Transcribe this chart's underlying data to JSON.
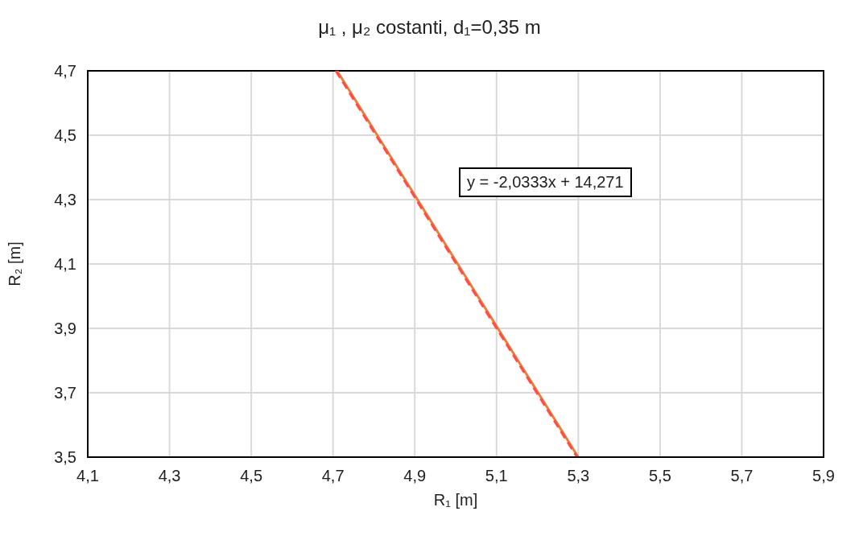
{
  "chart_data": {
    "type": "line",
    "title": "μ₁ , μ₂ costanti, d₁=0,35 m",
    "xlabel": "R₁ [m]",
    "ylabel": "R₂ [m]",
    "annotations": [
      "y = -2,0333x + 14,271"
    ],
    "series": [
      {
        "x": [
          4.71,
          5.3
        ],
        "values": [
          4.7,
          3.5
        ],
        "color": "#ed7d31",
        "line_style": "solid"
      },
      {
        "x": [
          4.707,
          5.297
        ],
        "values": [
          4.7,
          3.5
        ],
        "color": "#ff4b4b",
        "line_style": "dashed"
      }
    ],
    "xlim": [
      4.1,
      5.9
    ],
    "xticks": [
      {
        "value": 4.1,
        "label": "4,1"
      },
      {
        "value": 4.3,
        "label": "4,3"
      },
      {
        "value": 4.5,
        "label": "4,5"
      },
      {
        "value": 4.7,
        "label": "4,7"
      },
      {
        "value": 4.9,
        "label": "4,9"
      },
      {
        "value": 5.1,
        "label": "5,1"
      },
      {
        "value": 5.3,
        "label": "5,3"
      },
      {
        "value": 5.5,
        "label": "5,5"
      },
      {
        "value": 5.7,
        "label": "5,7"
      },
      {
        "value": 5.9,
        "label": "5,9"
      }
    ],
    "ylim": [
      3.5,
      4.7
    ],
    "yticks": [
      {
        "value": 3.5,
        "label": "3,5"
      },
      {
        "value": 3.7,
        "label": "3,7"
      },
      {
        "value": 3.9,
        "label": "3,9"
      },
      {
        "value": 4.1,
        "label": "4,1"
      },
      {
        "value": 4.3,
        "label": "4,3"
      },
      {
        "value": 4.5,
        "label": "4,5"
      },
      {
        "value": 4.7,
        "label": "4,7"
      }
    ],
    "grid": true,
    "marker": "none"
  }
}
